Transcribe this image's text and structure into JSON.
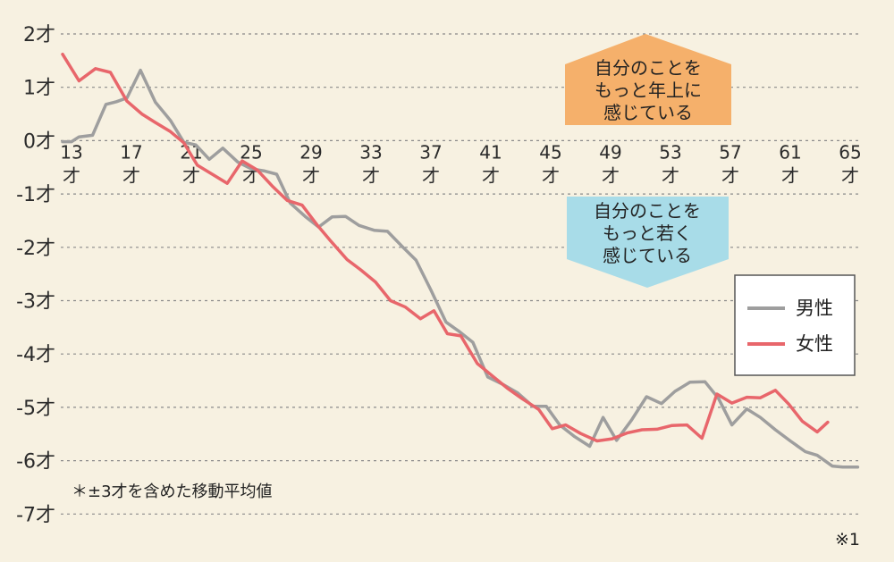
{
  "chart_data": {
    "type": "line",
    "y_tick_labels": [
      "2才",
      "1才",
      "0才",
      "-1才",
      "-2才",
      "-3才",
      "-4才",
      "-5才",
      "-6才",
      "-7才"
    ],
    "ylim": [
      -7,
      2
    ],
    "x_tick_labels": [
      "13",
      "17",
      "21",
      "25",
      "29",
      "33",
      "37",
      "41",
      "45",
      "49",
      "53",
      "57",
      "61",
      "65"
    ],
    "x_tick_unit": "才",
    "xlim": [
      13,
      66
    ],
    "grid": true,
    "annotations": {
      "older": [
        "自分のことを",
        "もっと年上に",
        "感じている"
      ],
      "younger": [
        "自分のことを",
        "もっと若く",
        "感じている"
      ],
      "note": "＊±3才を含めた移動平均値",
      "reference": "※1"
    },
    "colors": {
      "male": "#9e9e9e",
      "female": "#e8666b",
      "older_callout": "#f5b06b",
      "younger_callout": "#a8dce8"
    },
    "legend_position": "right",
    "series": [
      {
        "name": "男性",
        "key": "male",
        "points": [
          [
            12.4,
            -0.02
          ],
          [
            13,
            -0.02
          ],
          [
            13.5,
            0.07
          ],
          [
            14.4,
            0.1
          ],
          [
            15.3,
            0.68
          ],
          [
            16,
            0.73
          ],
          [
            16.7,
            0.8
          ],
          [
            17.6,
            1.32
          ],
          [
            18.6,
            0.72
          ],
          [
            19.6,
            0.38
          ],
          [
            20.5,
            -0.03
          ],
          [
            21.3,
            -0.08
          ],
          [
            22.2,
            -0.35
          ],
          [
            23.1,
            -0.14
          ],
          [
            24.1,
            -0.4
          ],
          [
            25,
            -0.53
          ],
          [
            25.9,
            -0.57
          ],
          [
            26.7,
            -0.63
          ],
          [
            27.6,
            -1.17
          ],
          [
            28.6,
            -1.42
          ],
          [
            29.5,
            -1.62
          ],
          [
            30.4,
            -1.43
          ],
          [
            31.3,
            -1.42
          ],
          [
            32.2,
            -1.59
          ],
          [
            33.2,
            -1.68
          ],
          [
            34.1,
            -1.7
          ],
          [
            35.1,
            -1.99
          ],
          [
            36,
            -2.24
          ],
          [
            37,
            -2.8
          ],
          [
            38,
            -3.4
          ],
          [
            38.9,
            -3.58
          ],
          [
            39.8,
            -3.78
          ],
          [
            40.8,
            -4.43
          ],
          [
            41.8,
            -4.57
          ],
          [
            42.8,
            -4.73
          ],
          [
            43.8,
            -4.98
          ],
          [
            44.7,
            -4.98
          ],
          [
            45.6,
            -5.33
          ],
          [
            46.6,
            -5.55
          ],
          [
            47.6,
            -5.73
          ],
          [
            48.5,
            -5.19
          ],
          [
            49.4,
            -5.62
          ],
          [
            50.4,
            -5.24
          ],
          [
            51.4,
            -4.8
          ],
          [
            52.4,
            -4.93
          ],
          [
            53.3,
            -4.7
          ],
          [
            54.3,
            -4.53
          ],
          [
            55.3,
            -4.52
          ],
          [
            56.2,
            -4.83
          ],
          [
            57.1,
            -5.33
          ],
          [
            58.1,
            -5.03
          ],
          [
            59,
            -5.19
          ],
          [
            60,
            -5.42
          ],
          [
            61,
            -5.63
          ],
          [
            62,
            -5.83
          ],
          [
            62.8,
            -5.9
          ],
          [
            63.8,
            -6.1
          ],
          [
            64.5,
            -6.12
          ],
          [
            65.5,
            -6.12
          ]
        ]
      },
      {
        "name": "女性",
        "key": "female",
        "points": [
          [
            12.4,
            1.62
          ],
          [
            13.5,
            1.12
          ],
          [
            14.6,
            1.35
          ],
          [
            15.6,
            1.28
          ],
          [
            16.7,
            0.74
          ],
          [
            17.7,
            0.5
          ],
          [
            18.6,
            0.34
          ],
          [
            19.6,
            0.17
          ],
          [
            20.5,
            -0.04
          ],
          [
            21.4,
            -0.46
          ],
          [
            22.4,
            -0.63
          ],
          [
            23.4,
            -0.8
          ],
          [
            24.4,
            -0.38
          ],
          [
            25.4,
            -0.55
          ],
          [
            26.4,
            -0.85
          ],
          [
            27.4,
            -1.12
          ],
          [
            28.4,
            -1.21
          ],
          [
            29.4,
            -1.58
          ],
          [
            30.3,
            -1.88
          ],
          [
            31.4,
            -2.23
          ],
          [
            32.3,
            -2.42
          ],
          [
            33.3,
            -2.65
          ],
          [
            34.3,
            -3
          ],
          [
            35.3,
            -3.12
          ],
          [
            36.3,
            -3.34
          ],
          [
            37.2,
            -3.19
          ],
          [
            38.1,
            -3.62
          ],
          [
            39,
            -3.66
          ],
          [
            40.1,
            -4.18
          ],
          [
            41.1,
            -4.41
          ],
          [
            42.1,
            -4.64
          ],
          [
            43.1,
            -4.84
          ],
          [
            44.2,
            -5.04
          ],
          [
            45.1,
            -5.4
          ],
          [
            46,
            -5.33
          ],
          [
            47,
            -5.49
          ],
          [
            48.1,
            -5.63
          ],
          [
            49.1,
            -5.59
          ],
          [
            50.1,
            -5.48
          ],
          [
            51.1,
            -5.42
          ],
          [
            52.1,
            -5.41
          ],
          [
            53.1,
            -5.34
          ],
          [
            54.1,
            -5.33
          ],
          [
            55.1,
            -5.58
          ],
          [
            56.1,
            -4.75
          ],
          [
            57.1,
            -4.92
          ],
          [
            58.1,
            -4.81
          ],
          [
            59,
            -4.82
          ],
          [
            60,
            -4.68
          ],
          [
            60.9,
            -4.94
          ],
          [
            61.8,
            -5.26
          ],
          [
            62.8,
            -5.46
          ],
          [
            63.5,
            -5.28
          ]
        ]
      }
    ]
  }
}
